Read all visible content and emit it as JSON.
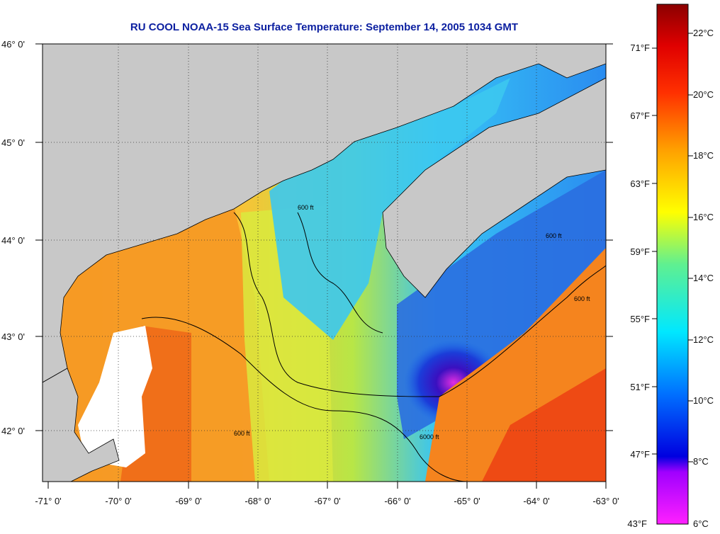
{
  "title": "RU COOL  NOAA-15  Sea Surface Temperature:  September 14, 2005 1034 GMT",
  "map": {
    "lat_labels": [
      "46° 0'",
      "45° 0'",
      "44° 0'",
      "43° 0'",
      "42° 0'"
    ],
    "lon_labels": [
      "-71° 0'",
      "-70° 0'",
      "-69° 0'",
      "-68° 0'",
      "-67° 0'",
      "-66° 0'",
      "-65° 0'",
      "-64° 0'",
      "-63° 0'"
    ],
    "contour_label": "600 ft",
    "contour_label_deep": "6000 ft"
  },
  "colorbar": {
    "fahrenheit_labels": [
      "71°F",
      "67°F",
      "63°F",
      "59°F",
      "55°F",
      "51°F",
      "47°F",
      "43°F"
    ],
    "celsius_labels": [
      "22°C",
      "20°C",
      "18°C",
      "16°C",
      "14°C",
      "12°C",
      "10°C",
      "8°C",
      "6°C"
    ],
    "colors": [
      "#8b0000",
      "#ff0000",
      "#ff7a00",
      "#ffee00",
      "#9ef03a",
      "#00e5ff",
      "#0080ff",
      "#0000d0",
      "#ff20ff"
    ]
  }
}
